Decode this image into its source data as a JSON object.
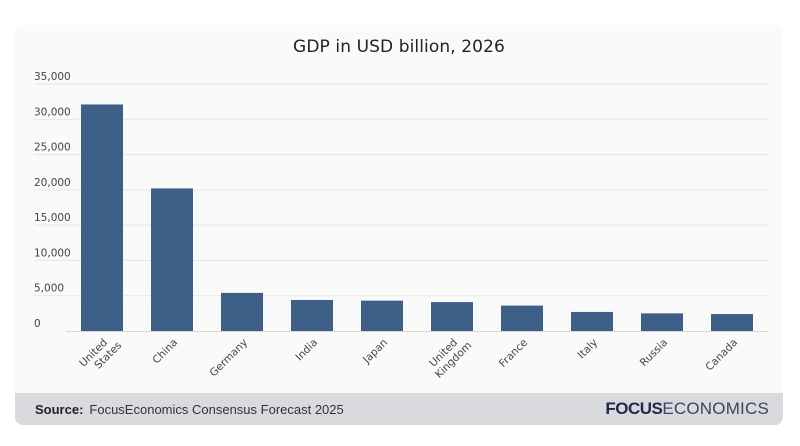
{
  "chart_data": {
    "type": "bar",
    "title": "GDP in USD billion, 2026",
    "xlabel": "",
    "ylabel": "",
    "categories": [
      "United States",
      "China",
      "Germany",
      "India",
      "Japan",
      "United Kingdom",
      "France",
      "Italy",
      "Russia",
      "Canada"
    ],
    "category_lines": [
      [
        "United",
        "States"
      ],
      [
        "China"
      ],
      [
        "Germany"
      ],
      [
        "India"
      ],
      [
        "Japan"
      ],
      [
        "United",
        "Kingdom"
      ],
      [
        "France"
      ],
      [
        "Italy"
      ],
      [
        "Russia"
      ],
      [
        "Canada"
      ]
    ],
    "values": [
      32100,
      20200,
      5400,
      4400,
      4300,
      4100,
      3600,
      2700,
      2500,
      2400
    ],
    "ylim": [
      0,
      35000
    ],
    "yticks": [
      0,
      5000,
      10000,
      15000,
      20000,
      25000,
      30000,
      35000
    ],
    "ytick_labels": [
      "0",
      "5,000",
      "10,000",
      "15,000",
      "20,000",
      "25,000",
      "30,000",
      "35,000"
    ],
    "grid": true,
    "legend": "none",
    "bar_color": "#3e5f88"
  },
  "footer": {
    "source_label": "Source:",
    "source_text": "FocusEconomics Consensus Forecast 2025",
    "logo_bold": "FOCUS",
    "logo_light": "ECONOMICS"
  }
}
